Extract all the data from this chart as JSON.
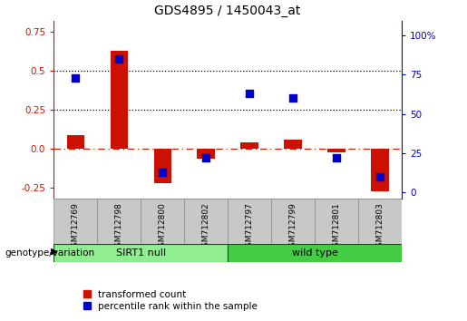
{
  "title": "GDS4895 / 1450043_at",
  "samples": [
    "GSM712769",
    "GSM712798",
    "GSM712800",
    "GSM712802",
    "GSM712797",
    "GSM712799",
    "GSM712801",
    "GSM712803"
  ],
  "transformed_count": [
    0.09,
    0.63,
    -0.22,
    -0.06,
    0.04,
    0.06,
    -0.02,
    -0.27
  ],
  "percentile_rank_pct": [
    73,
    85,
    13,
    22,
    63,
    60,
    22,
    10
  ],
  "bar_color": "#cc1100",
  "dot_color": "#0000cc",
  "groups": [
    {
      "label": "SIRT1 null",
      "start": 0,
      "end": 4,
      "color": "#90ee90"
    },
    {
      "label": "wild type",
      "start": 4,
      "end": 8,
      "color": "#44cc44"
    }
  ],
  "ylim_left": [
    -0.32,
    0.82
  ],
  "ylim_right": [
    -4.27,
    109.33
  ],
  "yticks_left": [
    -0.25,
    0.0,
    0.25,
    0.5,
    0.75
  ],
  "yticks_right": [
    0,
    25,
    50,
    75,
    100
  ],
  "ytick_labels_right": [
    "0",
    "25",
    "50",
    "75",
    "100%"
  ],
  "hlines": [
    0.25,
    0.5
  ],
  "zero_line_color": "#cc2200",
  "hline_color": "black",
  "bar_width": 0.4,
  "dot_size": 28,
  "genotype_label": "genotype/variation",
  "legend_items": [
    {
      "label": "transformed count",
      "color": "#cc1100"
    },
    {
      "label": "percentile rank within the sample",
      "color": "#0000cc"
    }
  ]
}
